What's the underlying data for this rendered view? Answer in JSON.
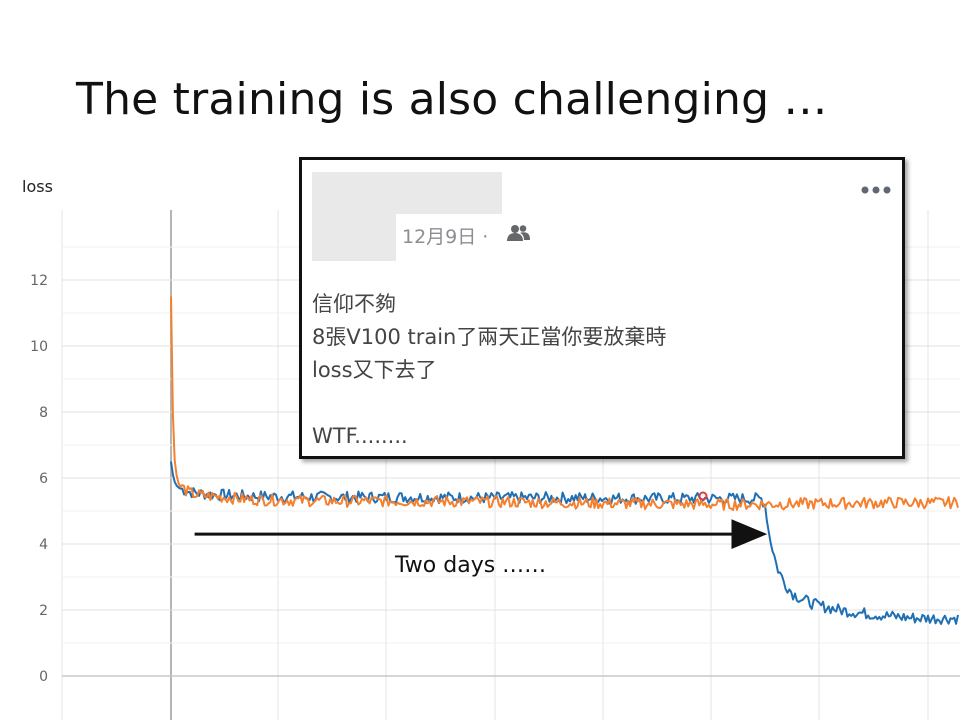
{
  "slide": {
    "title": "The training is also challenging …"
  },
  "chart_data": {
    "type": "line",
    "title": "",
    "ylabel": "loss",
    "xlabel": "",
    "ylim": [
      0,
      14
    ],
    "yticks": [
      0,
      2,
      4,
      6,
      8,
      10,
      12
    ],
    "grid": true,
    "xrange": [
      0,
      100
    ],
    "series": [
      {
        "color": "#f4802f",
        "x": [
          0,
          0.3,
          0.6,
          1,
          2,
          3,
          5,
          10,
          20,
          30,
          40,
          50,
          60,
          70,
          80,
          90,
          100
        ],
        "values": [
          11.5,
          7.0,
          6.2,
          5.8,
          5.6,
          5.5,
          5.45,
          5.35,
          5.3,
          5.3,
          5.28,
          5.25,
          5.22,
          5.2,
          5.22,
          5.25,
          5.25
        ]
      },
      {
        "color": "#1f6fb4",
        "x": [
          0,
          0.3,
          0.6,
          1,
          2,
          3,
          5,
          10,
          20,
          30,
          40,
          50,
          60,
          70,
          75,
          75.5,
          76,
          77,
          78,
          79,
          80,
          82,
          85,
          88,
          90,
          92,
          95,
          98,
          100
        ],
        "values": [
          6.5,
          6.0,
          5.8,
          5.7,
          5.6,
          5.55,
          5.5,
          5.45,
          5.42,
          5.42,
          5.4,
          5.4,
          5.38,
          5.38,
          5.37,
          5.2,
          4.3,
          3.3,
          2.8,
          2.5,
          2.35,
          2.15,
          2.0,
          1.9,
          1.85,
          1.8,
          1.75,
          1.75,
          1.75
        ]
      }
    ],
    "annotation": {
      "text": "Two days ……",
      "arrow_from_x": 3,
      "arrow_to_x": 75,
      "arrow_y": 4.3
    }
  },
  "post": {
    "date": "12月9日 ·",
    "lines": [
      "信仰不夠",
      "8張V100 train了兩天正當你要放棄時",
      "loss又下去了",
      "",
      "WTF........"
    ],
    "friends_icon": "friends-icon",
    "more_icon": "more-options-icon"
  }
}
